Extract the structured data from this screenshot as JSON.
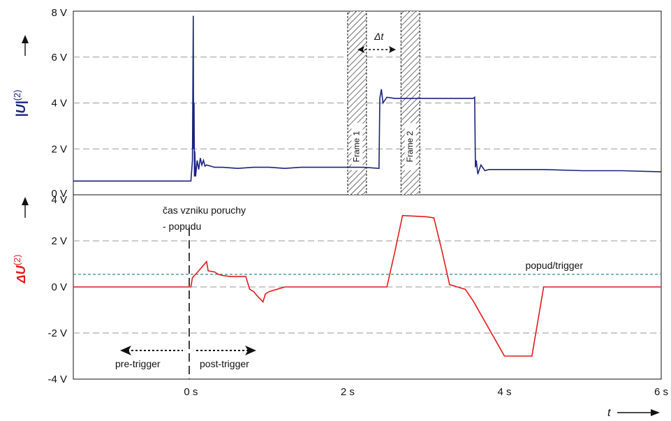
{
  "chart_data": [
    {
      "type": "line",
      "ylabel": "|U|(2)",
      "ylim": [
        0,
        8
      ],
      "xlim": [
        -1.5,
        6
      ],
      "xticks": [
        "0 s",
        "2 s",
        "4 s",
        "6 s"
      ],
      "yticks": [
        "0 V",
        "2 V",
        "4 V",
        "6 V",
        "8 V"
      ],
      "grid": "horizontal dashed",
      "color": "#1a237e",
      "series": [
        {
          "x": [
            -1.5,
            0,
            0.02,
            0.03,
            0.035,
            0.04,
            0.045,
            0.05,
            0.06,
            0.08,
            0.1,
            0.12,
            0.14,
            0.16,
            0.18,
            0.2,
            0.25,
            0.3,
            0.4,
            0.6,
            0.8,
            1.0,
            1.2,
            1.4,
            1.6,
            1.8,
            2.0,
            2.2,
            2.4,
            2.41,
            2.43,
            2.45,
            2.5,
            2.6,
            3.0,
            3.4,
            3.6,
            3.62,
            3.63,
            3.64,
            3.66,
            3.7,
            3.75,
            3.8,
            4.0,
            4.5,
            5.0,
            5.5,
            6.0
          ],
          "y": [
            0.6,
            0.6,
            1.5,
            7.8,
            2.0,
            4.0,
            0.8,
            1.9,
            0.8,
            1.5,
            1.1,
            1.6,
            1.3,
            1.5,
            1.25,
            1.3,
            1.25,
            1.2,
            1.2,
            1.15,
            1.2,
            1.2,
            1.15,
            1.2,
            1.2,
            1.2,
            1.2,
            1.2,
            1.15,
            4.2,
            4.6,
            4.0,
            4.25,
            4.2,
            4.2,
            4.2,
            4.2,
            4.25,
            1.2,
            1.5,
            0.9,
            1.3,
            1.05,
            1.1,
            1.1,
            1.1,
            1.05,
            1.05,
            1.0
          ]
        }
      ],
      "annotations": [
        "Frame 1",
        "Frame 2",
        "Δt"
      ],
      "frames": [
        {
          "label": "Frame 1",
          "x": [
            2.0,
            2.24
          ]
        },
        {
          "label": "Frame 2",
          "x": [
            2.68,
            2.92
          ]
        }
      ]
    },
    {
      "type": "line",
      "ylabel": "ΔU(2)",
      "ylim": [
        -4,
        4
      ],
      "xlim": [
        -1.5,
        6
      ],
      "xticks": [
        "0 s",
        "2 s",
        "4 s",
        "6 s"
      ],
      "yticks": [
        "-4 V",
        "-2 V",
        "0 V",
        "2 V",
        "4 V"
      ],
      "xlabel": "t",
      "grid": "horizontal dashed",
      "color": "#e41a1c",
      "series": [
        {
          "x": [
            -1.5,
            0,
            0.02,
            0.1,
            0.15,
            0.2,
            0.22,
            0.3,
            0.35,
            0.4,
            0.5,
            0.6,
            0.7,
            0.75,
            0.8,
            0.85,
            0.92,
            0.95,
            1.0,
            1.1,
            1.2,
            1.4,
            1.6,
            1.8,
            2.0,
            2.2,
            2.4,
            2.5,
            2.6,
            2.7,
            3.0,
            3.1,
            3.2,
            3.3,
            3.4,
            3.5,
            3.6,
            4.0,
            4.1,
            4.2,
            4.35,
            4.5,
            4.8,
            5.0,
            5.5,
            6.0
          ],
          "y": [
            0,
            0,
            0.4,
            0.7,
            0.9,
            1.1,
            0.7,
            0.65,
            0.55,
            0.5,
            0.45,
            0.45,
            0.45,
            -0.1,
            -0.2,
            -0.4,
            -0.65,
            -0.3,
            -0.2,
            -0.1,
            0.0,
            0.0,
            0.0,
            0.0,
            0.0,
            0.0,
            0.0,
            0.0,
            1.5,
            3.1,
            3.05,
            3.0,
            1.6,
            0.1,
            0.0,
            -0.1,
            -0.6,
            -3.0,
            -3.0,
            -3.0,
            -3.0,
            0.0,
            0.0,
            0.0,
            0.0,
            0.0
          ]
        }
      ],
      "threshold": {
        "label": "popud/trigger",
        "value": 0.55,
        "color": "#2e8b8b"
      },
      "annotations": [
        "čas vzniku poruchy",
        "- popudu",
        "pre-trigger",
        "post-trigger"
      ]
    }
  ]
}
